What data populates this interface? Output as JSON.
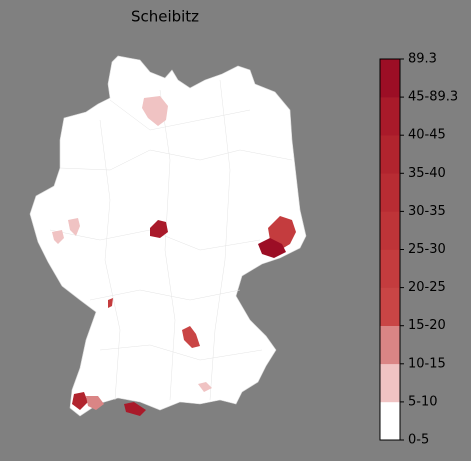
{
  "title": "Scheibitz",
  "colorbar": {
    "labels": [
      "0-5",
      "5-10",
      "10-15",
      "15-20",
      "20-25",
      "25-30",
      "30-35",
      "35-40",
      "40-45",
      "45-89.3",
      "89.3"
    ],
    "colors": [
      "#ffffff",
      "#f0c3c3",
      "#da8585",
      "#c94545",
      "#c43c3e",
      "#be3438",
      "#b82c33",
      "#b1242e",
      "#a91a2a",
      "#9c0e25"
    ]
  }
}
